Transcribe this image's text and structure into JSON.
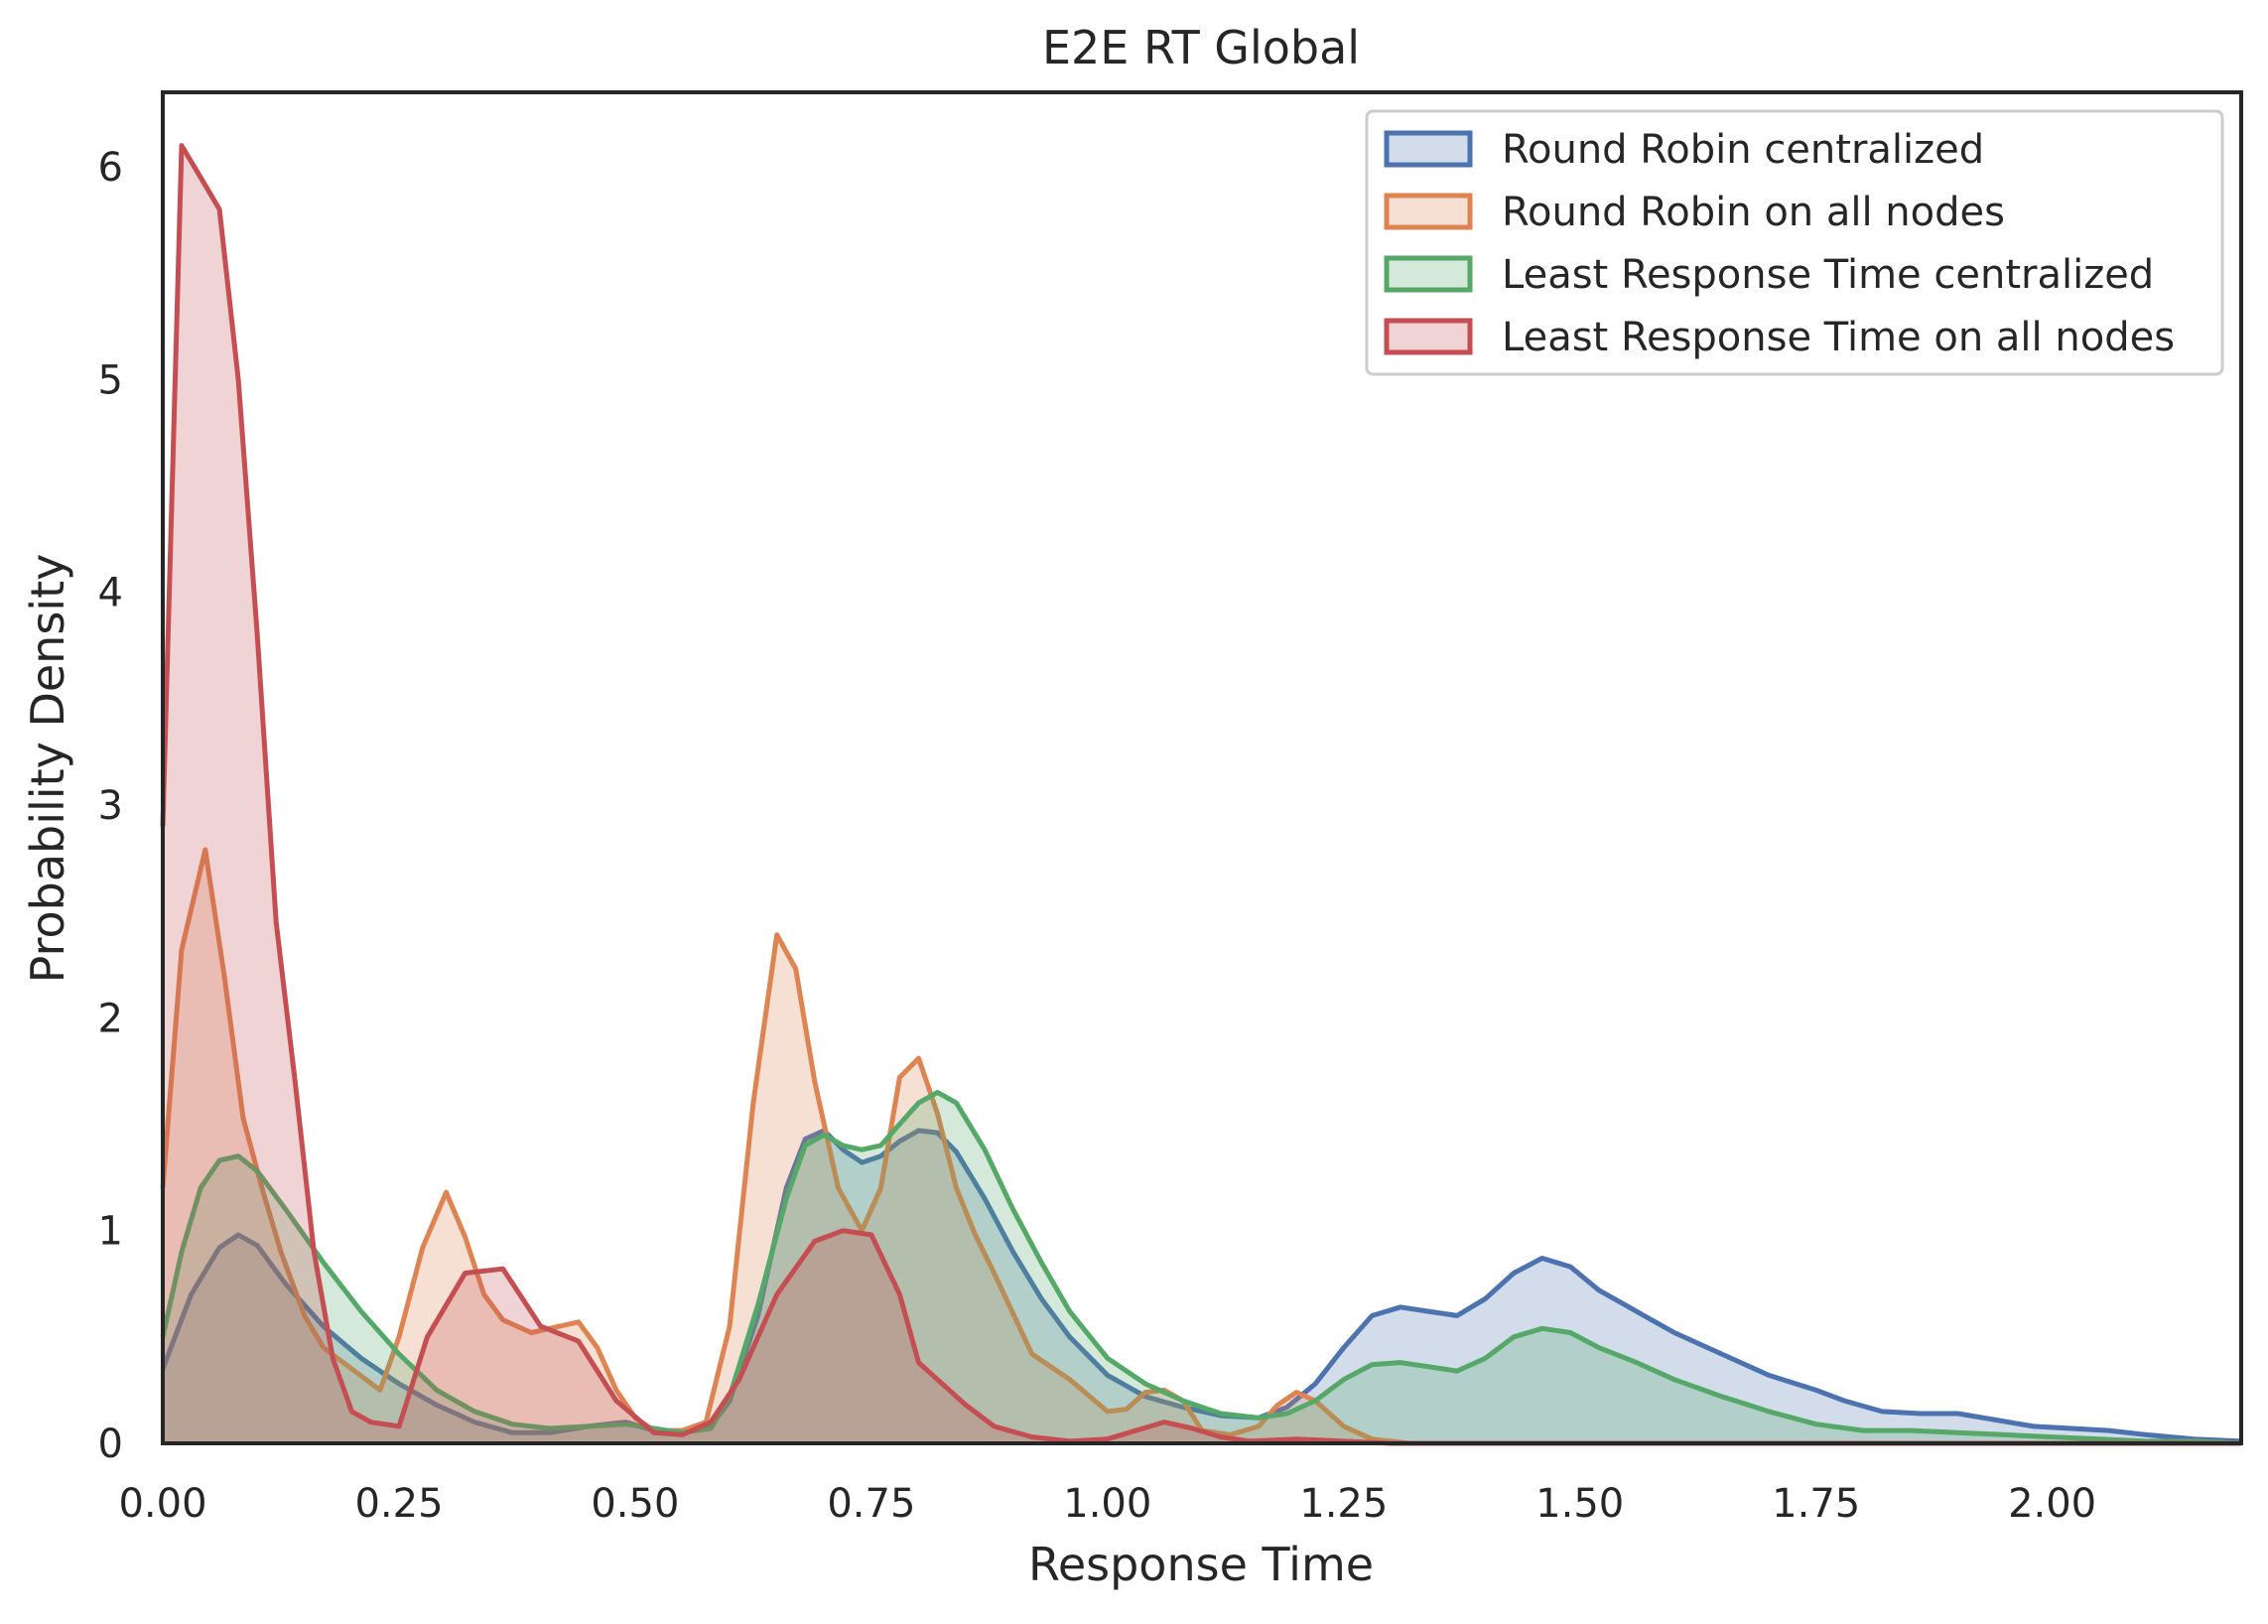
{
  "chart_data": {
    "type": "area",
    "title": "E2E RT Global",
    "xlabel": "Response Time",
    "ylabel": "Probability Density",
    "xlim": [
      0,
      2.2
    ],
    "ylim": [
      0,
      6.35
    ],
    "xticks": [
      0,
      0.25,
      0.5,
      0.75,
      1.0,
      1.25,
      1.5,
      1.75,
      2.0
    ],
    "xtick_labels": [
      "0.00",
      "0.25",
      "0.50",
      "0.75",
      "1.00",
      "1.25",
      "1.50",
      "1.75",
      "2.00"
    ],
    "yticks": [
      0,
      1,
      2,
      3,
      4,
      5,
      6
    ],
    "ytick_labels": [
      "0",
      "1",
      "2",
      "3",
      "4",
      "5",
      "6"
    ],
    "grid": false,
    "legend_position": "top-right",
    "series": [
      {
        "name": "Round Robin centralized",
        "color": "#4c72b0",
        "x": [
          0,
          0.03,
          0.06,
          0.08,
          0.1,
          0.13,
          0.17,
          0.21,
          0.25,
          0.29,
          0.33,
          0.37,
          0.41,
          0.45,
          0.49,
          0.52,
          0.55,
          0.58,
          0.6,
          0.63,
          0.66,
          0.68,
          0.7,
          0.72,
          0.74,
          0.76,
          0.78,
          0.8,
          0.82,
          0.84,
          0.87,
          0.9,
          0.93,
          0.96,
          1.0,
          1.04,
          1.08,
          1.12,
          1.16,
          1.19,
          1.22,
          1.25,
          1.28,
          1.31,
          1.34,
          1.37,
          1.4,
          1.43,
          1.46,
          1.49,
          1.52,
          1.56,
          1.6,
          1.65,
          1.7,
          1.75,
          1.78,
          1.82,
          1.86,
          1.9,
          1.94,
          1.98,
          2.02,
          2.06,
          2.1,
          2.15,
          2.2
        ],
        "y": [
          0.35,
          0.7,
          0.92,
          0.98,
          0.93,
          0.75,
          0.55,
          0.4,
          0.28,
          0.18,
          0.1,
          0.05,
          0.05,
          0.08,
          0.1,
          0.06,
          0.05,
          0.08,
          0.2,
          0.6,
          1.2,
          1.43,
          1.47,
          1.38,
          1.32,
          1.35,
          1.42,
          1.47,
          1.46,
          1.37,
          1.15,
          0.9,
          0.68,
          0.5,
          0.32,
          0.22,
          0.17,
          0.13,
          0.12,
          0.17,
          0.28,
          0.45,
          0.6,
          0.64,
          0.62,
          0.6,
          0.68,
          0.8,
          0.87,
          0.83,
          0.72,
          0.62,
          0.52,
          0.42,
          0.32,
          0.25,
          0.2,
          0.15,
          0.14,
          0.14,
          0.11,
          0.08,
          0.07,
          0.06,
          0.04,
          0.02,
          0.01
        ]
      },
      {
        "name": "Round Robin on all nodes",
        "color": "#dd8452",
        "x": [
          0,
          0.02,
          0.045,
          0.065,
          0.085,
          0.105,
          0.125,
          0.15,
          0.17,
          0.2,
          0.23,
          0.25,
          0.275,
          0.3,
          0.32,
          0.34,
          0.36,
          0.39,
          0.42,
          0.44,
          0.46,
          0.48,
          0.5,
          0.52,
          0.55,
          0.575,
          0.6,
          0.625,
          0.65,
          0.67,
          0.69,
          0.715,
          0.74,
          0.76,
          0.78,
          0.8,
          0.82,
          0.84,
          0.86,
          0.88,
          0.92,
          0.96,
          1.0,
          1.02,
          1.04,
          1.06,
          1.08,
          1.1,
          1.13,
          1.16,
          1.18,
          1.2,
          1.22,
          1.25,
          1.28,
          1.32,
          1.4,
          1.5,
          2.2
        ],
        "y": [
          1.2,
          2.32,
          2.79,
          2.2,
          1.53,
          1.2,
          0.9,
          0.6,
          0.45,
          0.35,
          0.25,
          0.5,
          0.92,
          1.18,
          0.97,
          0.7,
          0.58,
          0.52,
          0.55,
          0.57,
          0.45,
          0.25,
          0.12,
          0.06,
          0.06,
          0.1,
          0.55,
          1.6,
          2.39,
          2.23,
          1.7,
          1.2,
          1.0,
          1.2,
          1.72,
          1.81,
          1.55,
          1.2,
          0.98,
          0.8,
          0.42,
          0.3,
          0.15,
          0.16,
          0.24,
          0.25,
          0.2,
          0.06,
          0.04,
          0.08,
          0.18,
          0.24,
          0.2,
          0.08,
          0.02,
          0.0,
          0.0,
          0.0,
          0.0
        ]
      },
      {
        "name": "Least Response Time centralized",
        "color": "#55a868",
        "x": [
          0,
          0.02,
          0.04,
          0.06,
          0.08,
          0.1,
          0.13,
          0.17,
          0.21,
          0.25,
          0.29,
          0.33,
          0.37,
          0.41,
          0.45,
          0.49,
          0.52,
          0.55,
          0.58,
          0.6,
          0.63,
          0.66,
          0.68,
          0.7,
          0.72,
          0.74,
          0.76,
          0.78,
          0.8,
          0.82,
          0.84,
          0.87,
          0.9,
          0.93,
          0.96,
          1.0,
          1.04,
          1.08,
          1.12,
          1.16,
          1.19,
          1.22,
          1.25,
          1.28,
          1.31,
          1.34,
          1.37,
          1.4,
          1.43,
          1.46,
          1.49,
          1.52,
          1.56,
          1.6,
          1.65,
          1.7,
          1.75,
          1.8,
          1.85,
          1.9,
          1.95,
          2.0,
          2.05,
          2.1,
          2.15,
          2.2
        ],
        "y": [
          0.5,
          0.9,
          1.2,
          1.33,
          1.35,
          1.28,
          1.1,
          0.85,
          0.62,
          0.42,
          0.25,
          0.15,
          0.09,
          0.07,
          0.08,
          0.09,
          0.07,
          0.05,
          0.07,
          0.22,
          0.65,
          1.15,
          1.4,
          1.45,
          1.4,
          1.38,
          1.4,
          1.5,
          1.6,
          1.65,
          1.6,
          1.38,
          1.1,
          0.85,
          0.62,
          0.4,
          0.28,
          0.2,
          0.14,
          0.12,
          0.14,
          0.2,
          0.3,
          0.37,
          0.38,
          0.36,
          0.34,
          0.4,
          0.5,
          0.54,
          0.52,
          0.45,
          0.38,
          0.3,
          0.22,
          0.15,
          0.09,
          0.06,
          0.06,
          0.05,
          0.04,
          0.03,
          0.02,
          0.01,
          0.01,
          0.0
        ]
      },
      {
        "name": "Least Response Time on all nodes",
        "color": "#c44e52",
        "x": [
          0,
          0.02,
          0.04,
          0.06,
          0.08,
          0.1,
          0.12,
          0.14,
          0.16,
          0.18,
          0.2,
          0.22,
          0.25,
          0.28,
          0.32,
          0.36,
          0.4,
          0.44,
          0.48,
          0.52,
          0.55,
          0.58,
          0.61,
          0.65,
          0.69,
          0.72,
          0.75,
          0.78,
          0.8,
          0.82,
          0.85,
          0.88,
          0.92,
          0.96,
          1.0,
          1.03,
          1.06,
          1.09,
          1.12,
          1.15,
          1.2,
          1.25,
          1.3,
          2.2
        ],
        "y": [
          2.9,
          6.1,
          5.95,
          5.8,
          5.0,
          3.8,
          2.45,
          1.7,
          0.9,
          0.4,
          0.15,
          0.1,
          0.08,
          0.5,
          0.8,
          0.82,
          0.55,
          0.48,
          0.2,
          0.05,
          0.04,
          0.1,
          0.3,
          0.7,
          0.95,
          1.0,
          0.98,
          0.7,
          0.38,
          0.3,
          0.18,
          0.08,
          0.03,
          0.01,
          0.02,
          0.06,
          0.1,
          0.07,
          0.03,
          0.01,
          0.02,
          0.01,
          0.0,
          0.0
        ]
      }
    ]
  }
}
